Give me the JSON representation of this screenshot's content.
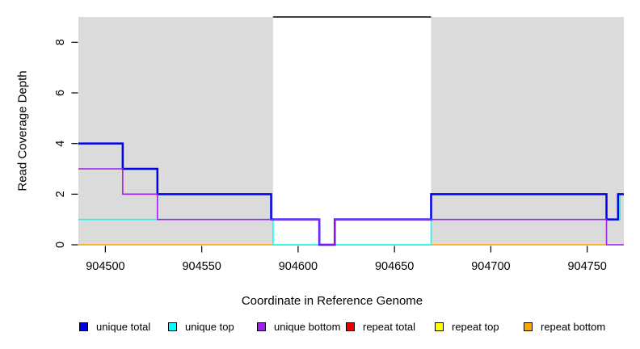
{
  "chart_data": {
    "type": "line",
    "subtype": "step-coverage",
    "title": "",
    "xlabel": "Coordinate in Reference Genome",
    "ylabel": "Read Coverage Depth",
    "xlim": [
      904486,
      904769
    ],
    "ylim": [
      0,
      9
    ],
    "x_ticks": [
      904500,
      904550,
      904600,
      904650,
      904700,
      904750
    ],
    "y_ticks": [
      0,
      2,
      4,
      6,
      8
    ],
    "grid": false,
    "legend_position": "bottom",
    "background_shading": {
      "color": "#DBDBDB",
      "shaded_x_ranges": [
        [
          904486,
          904587
        ],
        [
          904669,
          904769
        ]
      ],
      "white_gap_x_range": [
        904587,
        904669
      ]
    },
    "repeat_region_top_marker": {
      "x_range": [
        904587,
        904669
      ],
      "depth": 9,
      "color": "#000000"
    },
    "plot_order": [
      "repeat bottom",
      "unique top",
      "unique total",
      "unique bottom"
    ],
    "series": [
      {
        "name": "unique total",
        "color": "#0000EE",
        "line_width": 2.5,
        "visible": true,
        "steps": [
          [
            904486,
            4
          ],
          [
            904509,
            3
          ],
          [
            904527,
            2
          ],
          [
            904586,
            1
          ],
          [
            904611,
            0
          ],
          [
            904619,
            1
          ],
          [
            904669,
            2
          ],
          [
            904760,
            1
          ],
          [
            904766,
            2
          ],
          [
            904769,
            2
          ]
        ]
      },
      {
        "name": "unique top",
        "color": "#00FFFF",
        "line_width": 1.6,
        "visible": true,
        "steps": [
          [
            904486,
            1
          ],
          [
            904587,
            0
          ],
          [
            904669,
            1
          ],
          [
            904767,
            2
          ],
          [
            904769,
            2
          ]
        ]
      },
      {
        "name": "unique bottom",
        "color": "#A020F0",
        "line_width": 1.6,
        "visible": true,
        "steps": [
          [
            904486,
            3
          ],
          [
            904509,
            2
          ],
          [
            904527,
            1
          ],
          [
            904611,
            0
          ],
          [
            904619,
            1
          ],
          [
            904760,
            0
          ],
          [
            904769,
            0
          ]
        ]
      },
      {
        "name": "repeat total",
        "color": "#EE0000",
        "line_width": 1.6,
        "visible": false,
        "steps": []
      },
      {
        "name": "repeat top",
        "color": "#FFFF00",
        "line_width": 1.6,
        "visible": false,
        "steps": []
      },
      {
        "name": "repeat bottom",
        "color": "#FFA500",
        "line_width": 1.6,
        "visible": true,
        "steps": [
          [
            904486,
            0
          ],
          [
            904760,
            0
          ]
        ]
      }
    ]
  },
  "legend": {
    "items": [
      {
        "label": "unique total",
        "color": "#0000EE"
      },
      {
        "label": "unique top",
        "color": "#00FFFF"
      },
      {
        "label": "unique bottom",
        "color": "#A020F0"
      },
      {
        "label": "repeat total",
        "color": "#EE0000"
      },
      {
        "label": "repeat top",
        "color": "#FFFF00"
      },
      {
        "label": "repeat bottom",
        "color": "#FFA500"
      }
    ]
  }
}
